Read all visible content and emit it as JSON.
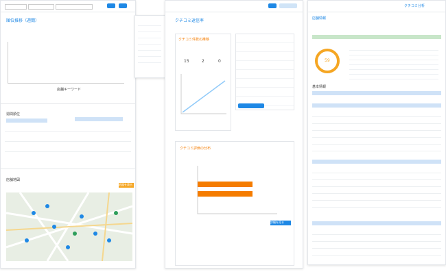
{
  "brand": "クチコミ分析",
  "left": {
    "title": "順位推移（週間）",
    "legend": "店舗キーワード",
    "table_title": "週間順位",
    "map_title": "店舗地図",
    "map_button": "地図を表示"
  },
  "middle": {
    "title": "クチコミ返信率",
    "stats": [
      "15",
      "2",
      "0"
    ],
    "chart_title": "クチコミ件数の推移",
    "bar_title": "クチコミ評価の分布",
    "button": "詳細を見る"
  },
  "right": {
    "title": "店舗情報",
    "score": "59",
    "section": "基本情報"
  }
}
